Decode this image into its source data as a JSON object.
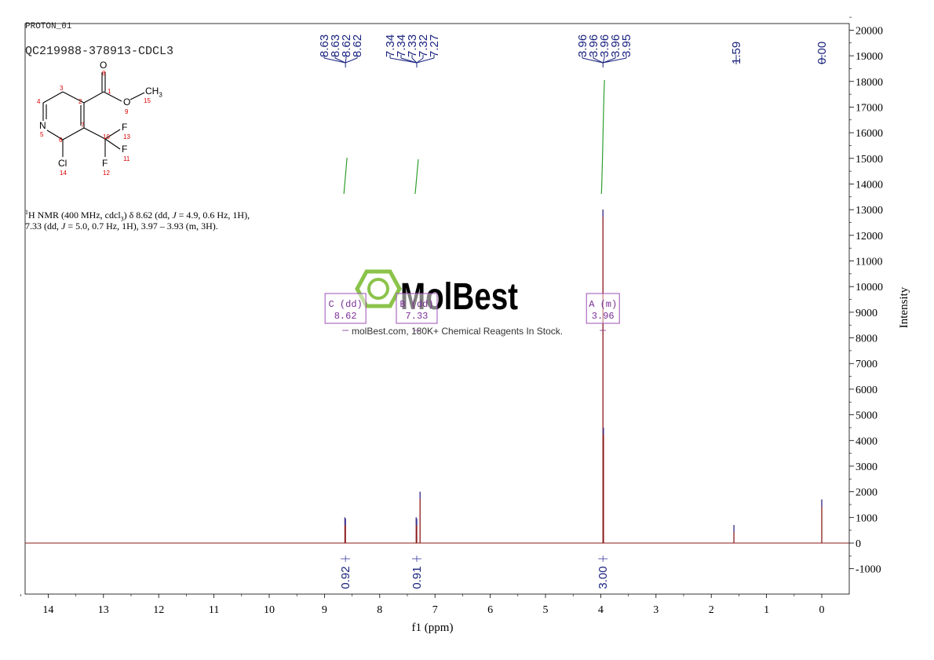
{
  "header": {
    "experiment": "PROTON_01",
    "sample": "QC219988-378913-CDCL3"
  },
  "molecule": {
    "atoms": [
      {
        "symbol": "O",
        "num": "8"
      },
      {
        "symbol": "O",
        "num": "9"
      },
      {
        "symbol": "CH",
        "sub": "3",
        "num": "15"
      },
      {
        "symbol": "N",
        "num": "5"
      },
      {
        "symbol": "F",
        "num": "13"
      },
      {
        "symbol": "F",
        "num": "11"
      },
      {
        "symbol": "F",
        "num": "12"
      },
      {
        "symbol": "Cl",
        "num": "14"
      }
    ],
    "carbons": [
      "1",
      "2",
      "3",
      "4",
      "6",
      "7",
      "10"
    ]
  },
  "description": {
    "sup": "1",
    "line1_a": "H NMR (400 MHz, cdcl",
    "line1_sub": "3",
    "line1_b": ") δ 8.62 (dd, ",
    "j": "J",
    "line1_c": " = 4.9, 0.6 Hz, 1H),",
    "line2_a": "7.33 (dd, ",
    "line2_b": " = 5.0, 0.7 Hz, 1H), 3.97 – 3.93 (m, 3H)."
  },
  "watermark": {
    "brand": "MolBest",
    "tagline": "molBest.com, 180K+ Chemical Reagents In Stock.",
    "color": "#8bc34a"
  },
  "chart_data": {
    "type": "line",
    "title": "",
    "xlabel": "f1 (ppm)",
    "ylabel": "Intensity",
    "xlim": [
      14.5,
      -0.5
    ],
    "ylim": [
      -2000,
      20300
    ],
    "x_reversed": true,
    "x_ticks": [
      "14",
      "13",
      "12",
      "11",
      "10",
      "9",
      "8",
      "7",
      "6",
      "5",
      "4",
      "3",
      "2",
      "1",
      "0"
    ],
    "y_ticks": [
      "20000",
      "19000",
      "18000",
      "17000",
      "16000",
      "15000",
      "14000",
      "13000",
      "12000",
      "11000",
      "10000",
      "9000",
      "8000",
      "7000",
      "6000",
      "5000",
      "4000",
      "3000",
      "2000",
      "1000",
      "0",
      "-1000"
    ],
    "spectrum_color": "#8b1a1a",
    "integral_color": "#2e9e2e",
    "peaks": [
      {
        "ppm": 8.63,
        "intensity": 1000
      },
      {
        "ppm": 8.62,
        "intensity": 950
      },
      {
        "ppm": 7.34,
        "intensity": 1000
      },
      {
        "ppm": 7.33,
        "intensity": 950
      },
      {
        "ppm": 7.27,
        "intensity": 2000
      },
      {
        "ppm": 3.96,
        "intensity": 13000
      },
      {
        "ppm": 3.95,
        "intensity": 4500
      },
      {
        "ppm": 1.59,
        "intensity": 700
      },
      {
        "ppm": 0.0,
        "intensity": 1700
      }
    ],
    "peak_label_groups": [
      {
        "labels": [
          "8.63",
          "8.63",
          "8.62",
          "8.62"
        ],
        "ppm": 8.62
      },
      {
        "labels": [
          "7.34",
          "7.34",
          "7.33",
          "7.32",
          "7.27"
        ],
        "ppm": 7.33
      },
      {
        "labels": [
          "3.96",
          "3.96",
          "3.96",
          "3.96",
          "3.95"
        ],
        "ppm": 3.96
      },
      {
        "labels": [
          "1.59"
        ],
        "ppm": 1.59
      },
      {
        "labels": [
          "0.00"
        ],
        "ppm": 0.0
      }
    ],
    "integrals": [
      {
        "ppm": 8.62,
        "value": "0.92"
      },
      {
        "ppm": 7.33,
        "value": "0.91"
      },
      {
        "ppm": 3.96,
        "value": "3.00"
      }
    ],
    "multiplets": [
      {
        "id": "C",
        "type": "(dd)",
        "shift": "8.62",
        "ppm": 8.62
      },
      {
        "id": "B",
        "type": "(dd)",
        "shift": "7.33",
        "ppm": 7.33
      },
      {
        "id": "A",
        "type": "(m)",
        "shift": "3.96",
        "ppm": 3.96
      }
    ]
  }
}
